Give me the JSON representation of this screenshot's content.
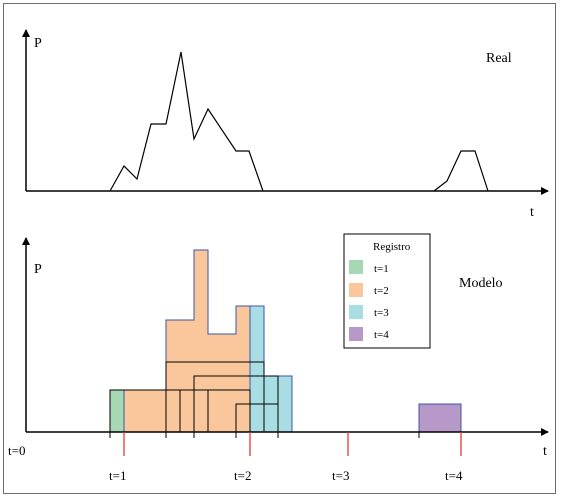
{
  "top_panel": {
    "y_axis_label": "P",
    "x_axis_label": "t",
    "title": "Real"
  },
  "bottom_panel": {
    "y_axis_label": "P",
    "x_axis_label": "t",
    "title": "Modelo",
    "origin_label": "t=0",
    "tick_labels": [
      "t=1",
      "t=2",
      "t=3",
      "t=4"
    ],
    "legend": {
      "title": "Registro",
      "items": [
        {
          "label": "t=1",
          "color": "#a7d8b4"
        },
        {
          "label": "t=2",
          "color": "#f9c79b"
        },
        {
          "label": "t=3",
          "color": "#a9dde4"
        },
        {
          "label": "t=4",
          "color": "#b897c9"
        }
      ]
    }
  },
  "colors": {
    "axis": "#000000",
    "tick_red": "#e03a3a",
    "box_border": "#3a56a8",
    "outline": "#000000"
  }
}
